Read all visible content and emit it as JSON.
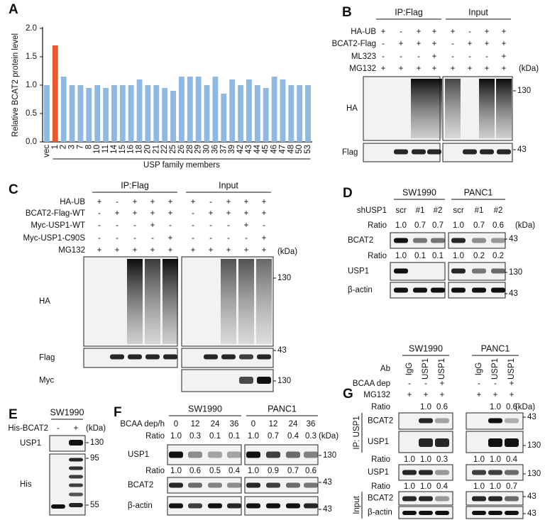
{
  "chart_data": {
    "type": "bar",
    "panel_label": "A",
    "ylabel": "Relative BCAT2 protein level",
    "xlabel": "USP family members",
    "categories": [
      "vec",
      "1",
      "2",
      "3",
      "7",
      "8",
      "10",
      "11",
      "14",
      "15",
      "16",
      "18",
      "20",
      "21",
      "22",
      "25",
      "26",
      "28",
      "29",
      "30",
      "36",
      "37",
      "39",
      "42",
      "43",
      "44",
      "45",
      "46",
      "47",
      "48",
      "50",
      "53"
    ],
    "values": [
      1.0,
      1.7,
      1.15,
      1.0,
      1.0,
      0.95,
      1.0,
      0.95,
      1.0,
      1.0,
      1.0,
      1.1,
      1.0,
      1.0,
      0.95,
      0.9,
      1.15,
      1.15,
      1.15,
      1.0,
      1.15,
      0.85,
      1.1,
      1.0,
      1.1,
      1.0,
      0.95,
      1.15,
      1.1,
      1.0,
      1.0,
      1.0
    ],
    "colors": [
      "#8fb8e3",
      "#ea5b2b",
      "#8fb8e3",
      "#8fb8e3",
      "#8fb8e3",
      "#8fb8e3",
      "#8fb8e3",
      "#8fb8e3",
      "#8fb8e3",
      "#8fb8e3",
      "#8fb8e3",
      "#8fb8e3",
      "#8fb8e3",
      "#8fb8e3",
      "#8fb8e3",
      "#8fb8e3",
      "#8fb8e3",
      "#8fb8e3",
      "#8fb8e3",
      "#8fb8e3",
      "#8fb8e3",
      "#8fb8e3",
      "#8fb8e3",
      "#8fb8e3",
      "#8fb8e3",
      "#8fb8e3",
      "#8fb8e3",
      "#8fb8e3",
      "#8fb8e3",
      "#8fb8e3",
      "#8fb8e3",
      "#8fb8e3"
    ],
    "ylim": [
      0,
      2
    ],
    "yticks": [
      {
        "value": 0,
        "label": "0.0"
      },
      {
        "value": 0.5,
        "label": "0.5"
      },
      {
        "value": 1,
        "label": "1.0"
      },
      {
        "value": 1.5,
        "label": "1.5"
      },
      {
        "value": 2,
        "label": "2.0"
      }
    ]
  },
  "panels": {
    "B": {
      "letter": "B",
      "groups": [
        "IP:Flag",
        "Input"
      ],
      "conditions": [
        {
          "label": "HA-UB",
          "marks": [
            "+",
            "-",
            "+",
            "+",
            "+",
            "-",
            "+",
            "+"
          ]
        },
        {
          "label": "BCAT2-Flag",
          "marks": [
            "-",
            "+",
            "+",
            "+",
            "-",
            "+",
            "+",
            "+"
          ]
        },
        {
          "label": "ML323",
          "marks": [
            "-",
            "-",
            "-",
            "+",
            "-",
            "-",
            "-",
            "+"
          ]
        },
        {
          "label": "MG132",
          "marks": [
            "+",
            "+",
            "+",
            "+",
            "+",
            "+",
            "+",
            "+"
          ]
        }
      ],
      "unit": "(kDa)",
      "blots": [
        {
          "label": "HA",
          "markers": [
            "130"
          ]
        },
        {
          "label": "Flag",
          "markers": [
            "43"
          ]
        }
      ]
    },
    "C": {
      "letter": "C",
      "groups": [
        "IP:Flag",
        "Input"
      ],
      "conditions": [
        {
          "label": "HA-UB",
          "marks": [
            "+",
            "-",
            "+",
            "+",
            "+",
            "+",
            "-",
            "+",
            "+",
            "+"
          ]
        },
        {
          "label": "BCAT2-Flag-WT",
          "marks": [
            "-",
            "+",
            "+",
            "+",
            "+",
            "-",
            "+",
            "+",
            "+",
            "+"
          ]
        },
        {
          "label": "Myc-USP1-WT",
          "marks": [
            "-",
            "-",
            "-",
            "+",
            "-",
            "-",
            "-",
            "-",
            "+",
            "-"
          ]
        },
        {
          "label": "Myc-USP1-C90S",
          "marks": [
            "-",
            "-",
            "-",
            "-",
            "+",
            "-",
            "-",
            "-",
            "-",
            "+"
          ]
        },
        {
          "label": "MG132",
          "marks": [
            "+",
            "+",
            "+",
            "+",
            "+",
            "+",
            "+",
            "+",
            "+",
            "+"
          ]
        }
      ],
      "unit": "(kDa)",
      "blots": [
        {
          "label": "HA",
          "markers": [
            "130"
          ]
        },
        {
          "label": "Flag",
          "markers": [
            "43"
          ]
        },
        {
          "label": "Myc",
          "markers": [
            "130"
          ]
        }
      ]
    },
    "D": {
      "letter": "D",
      "groups": [
        "SW1990",
        "PANC1"
      ],
      "conditions": [
        {
          "label": "shUSP1",
          "marks": [
            "scr",
            "#1",
            "#2",
            "scr",
            "#1",
            "#2"
          ]
        }
      ],
      "ratios": [
        {
          "label": "Ratio",
          "values": [
            "1.0",
            "0.7",
            "0.7",
            "1.0",
            "0.7",
            "0.6"
          ]
        },
        {
          "label": "Ratio",
          "values": [
            "1.0",
            "0.1",
            "0.1",
            "1.0",
            "0.2",
            "0.2"
          ]
        }
      ],
      "unit": "(kDa)",
      "blots": [
        {
          "label": "BCAT2",
          "markers": [
            "43"
          ]
        },
        {
          "label": "USP1",
          "markers": [
            "130"
          ]
        },
        {
          "label": "β-actin",
          "markers": [
            "43"
          ]
        }
      ]
    },
    "E": {
      "letter": "E",
      "groups": [
        "SW1990"
      ],
      "conditions": [
        {
          "label": "His-BCAT2",
          "marks": [
            "-",
            "+"
          ]
        }
      ],
      "unit": "(kDa)",
      "blots": [
        {
          "label": "USP1",
          "markers": [
            "130"
          ]
        },
        {
          "label": "His",
          "markers": [
            "95",
            "55"
          ]
        }
      ]
    },
    "F": {
      "letter": "F",
      "groups": [
        "SW1990",
        "PANC1"
      ],
      "conditions": [
        {
          "label": "BCAA dep/h",
          "marks": [
            "0",
            "12",
            "24",
            "36",
            "0",
            "12",
            "24",
            "36"
          ]
        }
      ],
      "ratios": [
        {
          "label": "Ratio",
          "values": [
            "1.0",
            "0.3",
            "0.1",
            "0.1",
            "1.0",
            "0.7",
            "0.4",
            "0.3"
          ]
        },
        {
          "label": "Ratio",
          "values": [
            "1.0",
            "0.6",
            "0.5",
            "0.4",
            "1.0",
            "0.9",
            "0.7",
            "0.6"
          ]
        }
      ],
      "unit": "(kDa)",
      "blots": [
        {
          "label": "USP1",
          "markers": [
            "130"
          ]
        },
        {
          "label": "BCAT2",
          "markers": [
            "43"
          ]
        },
        {
          "label": "β-actin",
          "markers": [
            "43"
          ]
        }
      ]
    },
    "G": {
      "letter": "G",
      "groups": [
        "SW1990",
        "PANC1"
      ],
      "conditions": [
        {
          "label": "Ab",
          "marks": [
            "IgG",
            "USP1",
            "USP1",
            "IgG",
            "USP1",
            "USP1"
          ]
        },
        {
          "label": "BCAA dep",
          "marks": [
            "-",
            "-",
            "+",
            "-",
            "-",
            "+"
          ]
        },
        {
          "label": "MG132",
          "marks": [
            "+",
            "+",
            "+",
            "+",
            "+",
            "+"
          ]
        }
      ],
      "ratios": [
        {
          "label": "Ratio",
          "values": [
            null,
            "1.0",
            "0.6",
            null,
            "1.0",
            "0.6"
          ]
        },
        {
          "label": "Ratio",
          "values": [
            "1.0",
            "1.0",
            "0.3",
            "1.0",
            "1.0",
            "0.4"
          ]
        },
        {
          "label": "Ratio",
          "values": [
            "1.0",
            "1.0",
            "0.4",
            "1.0",
            "1.0",
            "0.7"
          ]
        }
      ],
      "unit": "(kDa)",
      "sections": [
        "IP: USP1",
        "Input"
      ],
      "blots": [
        {
          "label": "BCAT2",
          "markers": [
            "43"
          ]
        },
        {
          "label": "USP1",
          "markers": [
            "130"
          ]
        },
        {
          "label": "USP1",
          "markers": [
            "130"
          ]
        },
        {
          "label": "BCAT2",
          "markers": [
            "43"
          ]
        },
        {
          "label": "β-actin",
          "markers": [
            "43"
          ]
        }
      ]
    }
  }
}
